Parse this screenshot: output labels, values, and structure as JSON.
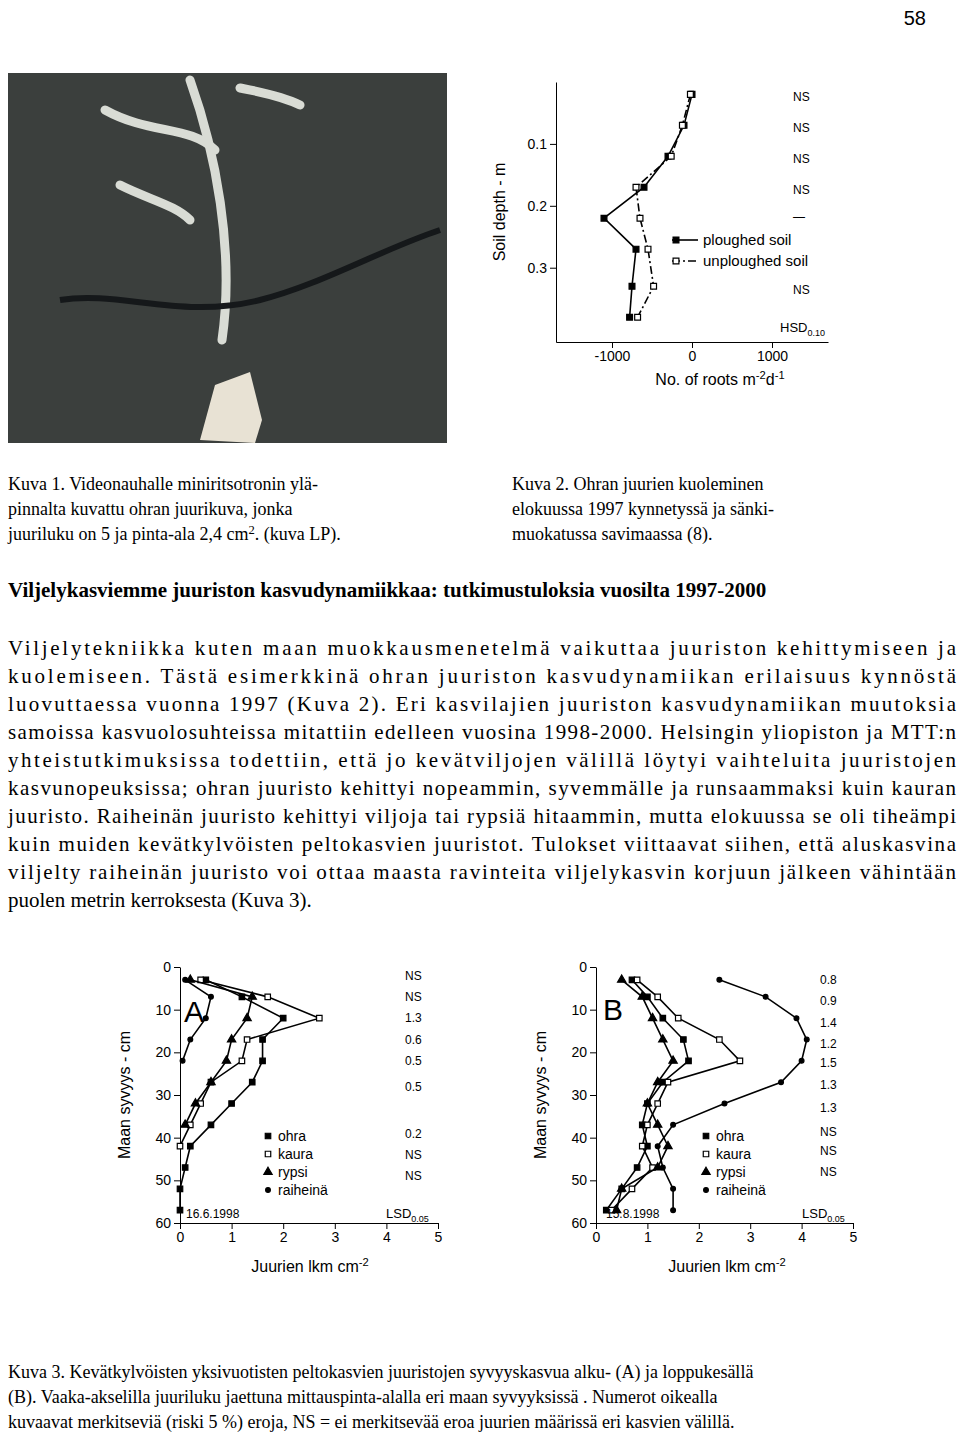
{
  "page_number": "58",
  "figure1": {
    "caption": [
      "Kuva 1. Videonauhalle miniritsotronin  ylä-",
      "pinnalta kuvattu ohran juurikuva, jonka",
      [
        {
          "text": "juuriluku on 5 ja pinta-ala 2,4 cm"
        },
        {
          "text": "2",
          "sup": true
        },
        {
          "text": ". (kuva LP)."
        }
      ]
    ]
  },
  "figure2": {
    "caption": [
      "Kuva 2. Ohran juurien kuoleminen",
      "elokuussa 1997 kynnetyssä ja sänki-",
      "muokatussa savimaassa (8)."
    ]
  },
  "heading": "Viljelykasviemme juuriston kasvudynamiikkaa: tutkimustuloksia vuosilta 1997-2000",
  "paragraph": [
    "Viljelytekniikka kuten maan muokkausmenetelmä vaikuttaa juuriston kehittymiseen ja",
    "kuolemiseen. Tästä esimerkkinä ohran juuriston kasvudynamiikan erilaisuus kynnöstä",
    "luovuttaessa vuonna 1997 (Kuva 2). Eri kasvilajien juuriston kasvudynamiikan muutoksia",
    "samoissa kasvuolosuhteissa mitattiin edelleen vuosina 1998-2000. Helsingin yliopiston ja MTT:n",
    "yhteistutkimuksissa todettiin, että jo kevätviljojen välillä löytyi vaihteluita juuristojen",
    "kasvunopeuksissa; ohran juuristo kehittyi nopeammin, syvemmälle ja runsaammaksi kuin kauran",
    "juuristo. Raiheinän juuristo kehittyi viljoja tai rypsiä hitaammin, mutta elokuussa se oli tiheämpi",
    "kuin muiden kevätkylvöisten peltokasvien juuristot. Tulokset viittaavat siihen, että aluskasvina",
    "viljelty raiheinän juuristo voi ottaa maasta ravinteita viljelykasvin korjuun jälkeen vähintään",
    "puolen metrin kerroksesta (Kuva 3)."
  ],
  "figure3": {
    "caption": [
      "Kuva 3.  Kevätkylvöisten yksivuotisten peltokasvien juuristojen syvyyskasvua alku- (A) ja loppukesällä",
      "(B). Vaaka-akselilla juuriluku jaettuna mittauspinta-alalla eri maan syvyyksissä .  Numerot oikealla",
      "kuvaavat merkitseviä (riski 5 %) eroja, NS = ei merkitsevää eroa juurien määrissä eri kasvien välillä."
    ]
  },
  "chart_data": [
    {
      "type": "line",
      "orientation": "horizontal",
      "ylabel": "Soil depth - m",
      "xlabel": [
        {
          "text": "No. of roots m"
        },
        {
          "text": "-2",
          "sup": true
        },
        {
          "text": "d"
        },
        {
          "text": "-1",
          "sup": true
        }
      ],
      "y": [
        0.02,
        0.07,
        0.12,
        0.17,
        0.22,
        0.27,
        0.33,
        0.38
      ],
      "ylim": [
        0,
        0.42
      ],
      "yticks": [
        0.1,
        0.2,
        0.3
      ],
      "xlim": [
        -1700,
        1700
      ],
      "xticks": [
        -1000,
        0,
        1000
      ],
      "legend": "center",
      "series": [
        {
          "name": "ploughed soil",
          "color": "#000000",
          "marker": "square",
          "line_style": "solid",
          "values": [
            0,
            -100,
            -300,
            -600,
            -1100,
            -700,
            -750,
            -780
          ]
        },
        {
          "name": "unploughed soil",
          "color": "#000000",
          "marker": "square-open",
          "line_style": "dashdot",
          "values": [
            -20,
            -120,
            -260,
            -700,
            -650,
            -550,
            -480,
            -680
          ]
        }
      ],
      "annotations": [
        {
          "text": "NS",
          "y": 0.024
        },
        {
          "text": "NS",
          "y": 0.074
        },
        {
          "text": "NS",
          "y": 0.124
        },
        {
          "text": "NS",
          "y": 0.174
        },
        {
          "text": "—",
          "y": 0.218
        },
        {
          "text": "NS",
          "y": 0.335
        }
      ],
      "stat_label": {
        "text": "HSD",
        "sub": "0.10"
      }
    },
    {
      "type": "line",
      "orientation": "horizontal",
      "panel_label": "A",
      "date": "16.6.1998",
      "ylabel": "Maan syvyys - cm",
      "xlabel": [
        {
          "text": "Juurien lkm cm"
        },
        {
          "text": "-2",
          "sup": true
        }
      ],
      "y": [
        3,
        7,
        12,
        17,
        22,
        27,
        32,
        37,
        42,
        47,
        52,
        57
      ],
      "ylim": [
        0,
        60
      ],
      "yticks": [
        0,
        10,
        20,
        30,
        40,
        50,
        60
      ],
      "xlim": [
        0,
        5
      ],
      "xticks": [
        0,
        1,
        2,
        3,
        4,
        5
      ],
      "legend": "lower center",
      "series": [
        {
          "name": "ohra",
          "color": "#000000",
          "marker": "square",
          "line_style": "solid",
          "values": [
            0.5,
            1.2,
            2.0,
            1.6,
            1.6,
            1.4,
            1.0,
            0.6,
            0.2,
            0.1,
            0,
            0
          ]
        },
        {
          "name": "kaura",
          "color": "#000000",
          "marker": "square-open",
          "line_style": "solid",
          "values": [
            0.4,
            1.7,
            2.7,
            1.3,
            1.2,
            0.6,
            0.4,
            0.2,
            0,
            null,
            null,
            null
          ]
        },
        {
          "name": "rypsi",
          "color": "#000000",
          "marker": "triangle",
          "line_style": "solid",
          "values": [
            0.2,
            1.4,
            1.3,
            1.0,
            0.9,
            0.6,
            0.3,
            0.1,
            null,
            null,
            null,
            null
          ]
        },
        {
          "name": "raiheinä",
          "color": "#000000",
          "marker": "circle",
          "line_style": "solid",
          "values": [
            0.1,
            0.6,
            0.5,
            0.2,
            0.05,
            null,
            null,
            null,
            null,
            null,
            null,
            null
          ]
        }
      ],
      "annotations": [
        {
          "text": "NS",
          "y": 2
        },
        {
          "text": "NS",
          "y": 7
        },
        {
          "text": "1.3",
          "y": 12
        },
        {
          "text": "0.6",
          "y": 17
        },
        {
          "text": "0.5",
          "y": 22
        },
        {
          "text": "0.5",
          "y": 28
        },
        {
          "text": "0.2",
          "y": 39
        },
        {
          "text": "NS",
          "y": 44
        },
        {
          "text": "NS",
          "y": 49
        }
      ],
      "stat_label": {
        "text": "LSD",
        "sub": "0.05"
      }
    },
    {
      "type": "line",
      "orientation": "horizontal",
      "panel_label": "B",
      "date": "15.8.1998",
      "ylabel": "Maan syvyys - cm",
      "xlabel": [
        {
          "text": "Juurien lkm cm"
        },
        {
          "text": "-2",
          "sup": true
        }
      ],
      "y": [
        3,
        7,
        12,
        17,
        22,
        27,
        32,
        37,
        42,
        47,
        52,
        57
      ],
      "ylim": [
        0,
        60
      ],
      "yticks": [
        0,
        10,
        20,
        30,
        40,
        50,
        60
      ],
      "xlim": [
        0,
        5
      ],
      "xticks": [
        0,
        1,
        2,
        3,
        4,
        5
      ],
      "legend": "lower center",
      "series": [
        {
          "name": "ohra",
          "color": "#000000",
          "marker": "square",
          "line_style": "solid",
          "values": [
            0.7,
            1.0,
            1.3,
            1.7,
            1.8,
            1.3,
            1.0,
            0.9,
            1.0,
            0.8,
            0.5,
            0.2
          ]
        },
        {
          "name": "kaura",
          "color": "#000000",
          "marker": "square-open",
          "line_style": "solid",
          "values": [
            0.8,
            1.2,
            1.6,
            2.4,
            2.8,
            1.4,
            1.2,
            1.0,
            0.9,
            1.1,
            0.7,
            0.3
          ]
        },
        {
          "name": "rypsi",
          "color": "#000000",
          "marker": "triangle",
          "line_style": "solid",
          "values": [
            0.5,
            0.9,
            1.1,
            1.3,
            1.5,
            1.2,
            1.0,
            1.2,
            1.4,
            1.2,
            0.5,
            0.4
          ]
        },
        {
          "name": "raiheinä",
          "color": "#000000",
          "marker": "circle",
          "line_style": "solid",
          "values": [
            2.4,
            3.3,
            3.9,
            4.1,
            4.0,
            3.6,
            2.5,
            1.5,
            1.2,
            1.3,
            1.5,
            1.5
          ]
        }
      ],
      "annotations": [
        {
          "text": "0.8",
          "y": 3
        },
        {
          "text": "0.9",
          "y": 8
        },
        {
          "text": "1.4",
          "y": 13
        },
        {
          "text": "1.2",
          "y": 18
        },
        {
          "text": "1.5",
          "y": 22.5
        },
        {
          "text": "1.3",
          "y": 27.6
        },
        {
          "text": "1.3",
          "y": 33
        },
        {
          "text": "NS",
          "y": 38.6
        },
        {
          "text": "NS",
          "y": 43
        },
        {
          "text": "NS",
          "y": 48
        }
      ],
      "stat_label": {
        "text": "LSD",
        "sub": "0.05"
      }
    }
  ]
}
